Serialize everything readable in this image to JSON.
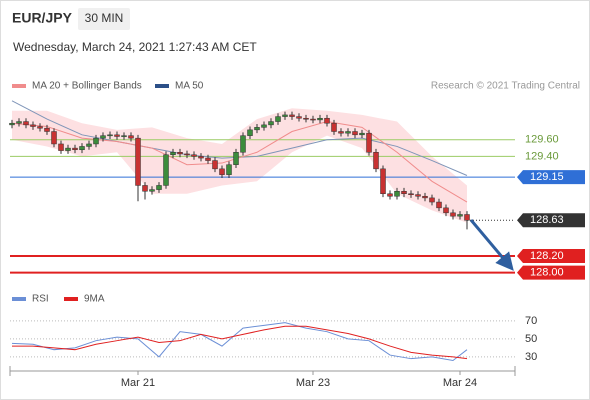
{
  "chart_data": {
    "type": "candlestick",
    "symbol": "EUR/JPY",
    "timeframe": "30 MIN",
    "subtitle": "Wednesday, March 24, 2021 1:27:43 AM CET",
    "credit": "Research © 2021 Trading Central",
    "categories": [
      null,
      null,
      null,
      null,
      null,
      null,
      null,
      null,
      null,
      null,
      null,
      null,
      null,
      null,
      null,
      null,
      null,
      null,
      "Mar 21",
      null,
      null,
      null,
      null,
      null,
      null,
      null,
      null,
      null,
      null,
      null,
      null,
      null,
      null,
      null,
      null,
      null,
      null,
      null,
      null,
      null,
      null,
      null,
      null,
      "Mar 23",
      null,
      null,
      null,
      null,
      null,
      null,
      null,
      null,
      null,
      null,
      null,
      null,
      null,
      null,
      null,
      null,
      null,
      null,
      null,
      null,
      "Mar 24",
      null
    ],
    "open": [
      129.78,
      129.8,
      129.82,
      129.78,
      129.76,
      129.74,
      129.7,
      129.55,
      129.47,
      129.5,
      129.48,
      129.52,
      129.55,
      129.62,
      129.65,
      129.66,
      129.64,
      129.65,
      129.62,
      129.05,
      128.98,
      129.0,
      129.05,
      129.42,
      129.45,
      129.43,
      129.42,
      129.4,
      129.38,
      129.35,
      129.25,
      129.18,
      129.3,
      129.45,
      129.65,
      129.72,
      129.75,
      129.78,
      129.82,
      129.88,
      129.9,
      129.88,
      129.86,
      129.85,
      129.84,
      129.86,
      129.8,
      129.7,
      129.68,
      129.7,
      129.66,
      129.68,
      129.45,
      129.25,
      128.95,
      128.92,
      128.98,
      128.95,
      128.94,
      128.92,
      128.9,
      128.85,
      128.78,
      128.72,
      128.68,
      128.7
    ],
    "high": [
      129.84,
      129.86,
      129.86,
      129.82,
      129.8,
      129.78,
      129.74,
      129.59,
      129.54,
      129.54,
      129.56,
      129.59,
      129.66,
      129.69,
      129.7,
      129.7,
      129.69,
      129.69,
      129.66,
      129.09,
      129.04,
      129.09,
      129.46,
      129.49,
      129.49,
      129.47,
      129.46,
      129.44,
      129.42,
      129.39,
      129.29,
      129.34,
      129.49,
      129.69,
      129.76,
      129.79,
      129.82,
      129.86,
      129.92,
      129.94,
      129.94,
      129.92,
      129.9,
      129.89,
      129.9,
      129.9,
      129.84,
      129.74,
      129.74,
      129.74,
      129.72,
      129.72,
      129.49,
      129.29,
      128.99,
      129.02,
      129.02,
      128.99,
      128.98,
      128.96,
      128.94,
      128.89,
      128.82,
      128.76,
      128.74,
      128.74
    ],
    "low": [
      129.74,
      129.76,
      129.74,
      129.72,
      129.7,
      129.66,
      129.51,
      129.43,
      129.43,
      129.44,
      129.44,
      129.48,
      129.51,
      129.58,
      129.61,
      129.6,
      129.6,
      129.58,
      128.86,
      128.88,
      128.94,
      128.96,
      129.01,
      129.38,
      129.39,
      129.38,
      129.36,
      129.34,
      129.31,
      129.21,
      129.14,
      129.14,
      129.26,
      129.41,
      129.61,
      129.68,
      129.71,
      129.74,
      129.78,
      129.84,
      129.84,
      129.82,
      129.81,
      129.8,
      129.8,
      129.76,
      129.66,
      129.64,
      129.64,
      129.62,
      129.62,
      129.41,
      129.21,
      128.91,
      128.88,
      128.88,
      128.91,
      128.9,
      128.88,
      128.86,
      128.81,
      128.74,
      128.68,
      128.64,
      128.64,
      128.52
    ],
    "close": [
      129.8,
      129.82,
      129.78,
      129.76,
      129.74,
      129.7,
      129.55,
      129.47,
      129.5,
      129.48,
      129.52,
      129.55,
      129.62,
      129.65,
      129.66,
      129.64,
      129.65,
      129.62,
      129.05,
      128.98,
      129.0,
      129.05,
      129.42,
      129.45,
      129.43,
      129.42,
      129.4,
      129.38,
      129.35,
      129.25,
      129.18,
      129.3,
      129.45,
      129.65,
      129.72,
      129.75,
      129.78,
      129.82,
      129.88,
      129.9,
      129.88,
      129.86,
      129.85,
      129.84,
      129.86,
      129.8,
      129.7,
      129.68,
      129.7,
      129.66,
      129.68,
      129.45,
      129.25,
      128.95,
      128.92,
      128.98,
      128.95,
      128.94,
      128.92,
      128.9,
      128.85,
      128.78,
      128.72,
      128.68,
      128.7,
      128.63
    ],
    "up_color": "#3c8c3c",
    "down_color": "#c83232",
    "ylim": [
      127.79,
      130.14
    ],
    "band": {
      "name": "MA 20 + Bollinger Bands",
      "color": "#f08c8c",
      "fill": "#fde0e2",
      "x": [
        0,
        5,
        10,
        15,
        20,
        25,
        30,
        35,
        40,
        45,
        50,
        55,
        60,
        65
      ],
      "mid": [
        129.8,
        129.76,
        129.62,
        129.58,
        129.5,
        129.3,
        129.32,
        129.45,
        129.7,
        129.82,
        129.75,
        129.45,
        129.1,
        128.85
      ],
      "upper": [
        129.95,
        129.95,
        129.8,
        129.72,
        129.75,
        129.62,
        129.55,
        129.85,
        129.98,
        129.95,
        129.9,
        129.82,
        129.4,
        129.05
      ],
      "lower": [
        129.6,
        129.52,
        129.4,
        129.45,
        128.95,
        128.95,
        129.05,
        129.1,
        129.45,
        129.65,
        129.5,
        128.95,
        128.75,
        128.6
      ]
    },
    "ma50": {
      "name": "MA 50",
      "color": "#2c5088",
      "line_color": "#7f95b8",
      "x": [
        0,
        5,
        10,
        15,
        20,
        25,
        30,
        35,
        40,
        45,
        50,
        55,
        60,
        65
      ],
      "values": [
        130.07,
        129.85,
        129.66,
        129.58,
        129.5,
        129.42,
        129.38,
        129.4,
        129.5,
        129.6,
        129.62,
        129.52,
        129.35,
        129.17
      ]
    },
    "levels": [
      {
        "value": 129.6,
        "label": "129.60",
        "color": "#9ccc65",
        "style": "text"
      },
      {
        "value": 129.4,
        "label": "129.40",
        "color": "#9ccc65",
        "style": "text"
      },
      {
        "value": 129.15,
        "label": "129.15",
        "color": "#2f6fd6",
        "style": "box"
      },
      {
        "value": 128.63,
        "label": "128.63",
        "color": "#333333",
        "style": "current"
      },
      {
        "value": 128.2,
        "label": "128.20",
        "color": "#e02020",
        "style": "box"
      },
      {
        "value": 128.0,
        "label": "128.00",
        "color": "#e02020",
        "style": "box"
      }
    ],
    "rsi": {
      "ylim": [
        13.2,
        82.1
      ],
      "yticks": [
        30,
        50,
        70
      ],
      "x": [
        0,
        3,
        6,
        9,
        12,
        15,
        18,
        21,
        24,
        27,
        30,
        33,
        36,
        39,
        42,
        45,
        48,
        51,
        54,
        57,
        60,
        63,
        65
      ],
      "series": [
        {
          "name": "RSI",
          "color": "#6b8fd6",
          "values": [
            45,
            44,
            38,
            40,
            48,
            52,
            50,
            30,
            58,
            55,
            42,
            62,
            65,
            68,
            62,
            58,
            50,
            48,
            32,
            28,
            30,
            26,
            38
          ]
        },
        {
          "name": "9MA",
          "color": "#e02020",
          "values": [
            42,
            42,
            40,
            38,
            44,
            48,
            52,
            46,
            48,
            55,
            50,
            55,
            60,
            64,
            64,
            60,
            56,
            50,
            42,
            35,
            32,
            30,
            28
          ]
        }
      ]
    }
  }
}
